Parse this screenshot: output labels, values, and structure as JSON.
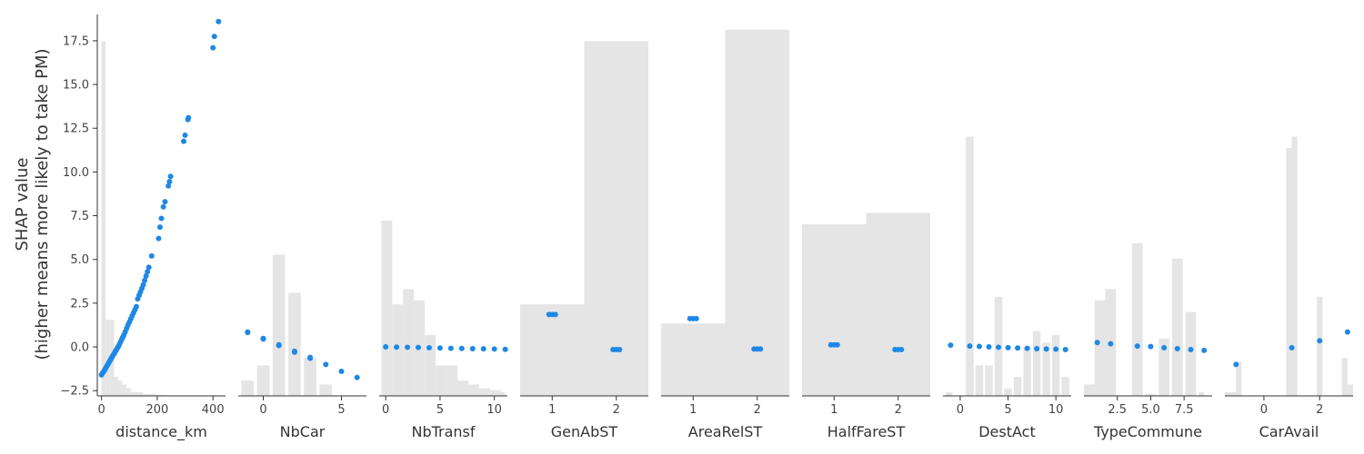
{
  "chart_data": {
    "type": "scatter",
    "ylabel": "SHAP value\n(higher means more likely to take PM)",
    "ylim": [
      -2.8,
      19.0
    ],
    "yticks": [
      -2.5,
      0.0,
      2.5,
      5.0,
      7.5,
      10.0,
      12.5,
      15.0,
      17.5
    ],
    "yticklabels": [
      "−2.5",
      "0.0",
      "2.5",
      "5.0",
      "7.5",
      "10.0",
      "12.5",
      "15.0",
      "17.5"
    ],
    "point_color": "#1e88e5",
    "histogram_color": "#e5e5e5",
    "axis_color": "#333333",
    "panels": [
      {
        "feature": "distance_km",
        "xlim": [
          -15,
          445
        ],
        "xticks": [
          0,
          200,
          400
        ],
        "xticklabels": [
          "0",
          "200",
          "400"
        ],
        "histogram": [
          [
            0,
            15,
            0.93
          ],
          [
            15,
            30,
            0.2
          ],
          [
            30,
            45,
            0.2
          ],
          [
            45,
            60,
            0.05
          ],
          [
            60,
            75,
            0.04
          ],
          [
            75,
            90,
            0.03
          ],
          [
            90,
            105,
            0.02
          ],
          [
            105,
            120,
            0.01
          ],
          [
            120,
            135,
            0.01
          ],
          [
            135,
            150,
            0.01
          ],
          [
            150,
            165,
            0.005
          ],
          [
            165,
            180,
            0.005
          ],
          [
            180,
            195,
            0.005
          ],
          [
            195,
            210,
            0.003
          ],
          [
            210,
            225,
            0.003
          ],
          [
            225,
            240,
            0.002
          ]
        ],
        "points": [
          [
            0,
            -1.6
          ],
          [
            3,
            -1.52
          ],
          [
            6,
            -1.45
          ],
          [
            9,
            -1.38
          ],
          [
            12,
            -1.3
          ],
          [
            15,
            -1.22
          ],
          [
            18,
            -1.13
          ],
          [
            21,
            -1.05
          ],
          [
            24,
            -0.97
          ],
          [
            27,
            -0.88
          ],
          [
            30,
            -0.8
          ],
          [
            33,
            -0.72
          ],
          [
            36,
            -0.63
          ],
          [
            39,
            -0.55
          ],
          [
            42,
            -0.47
          ],
          [
            45,
            -0.39
          ],
          [
            48,
            -0.31
          ],
          [
            51,
            -0.23
          ],
          [
            54,
            -0.15
          ],
          [
            57,
            -0.07
          ],
          [
            60,
            0.01
          ],
          [
            64,
            0.13
          ],
          [
            68,
            0.27
          ],
          [
            72,
            0.41
          ],
          [
            76,
            0.54
          ],
          [
            80,
            0.67
          ],
          [
            85,
            0.86
          ],
          [
            90,
            1.05
          ],
          [
            95,
            1.25
          ],
          [
            100,
            1.42
          ],
          [
            105,
            1.6
          ],
          [
            110,
            1.78
          ],
          [
            115,
            1.95
          ],
          [
            120,
            2.12
          ],
          [
            125,
            2.3
          ],
          [
            130,
            2.75
          ],
          [
            135,
            2.95
          ],
          [
            140,
            3.15
          ],
          [
            145,
            3.35
          ],
          [
            150,
            3.55
          ],
          [
            155,
            3.8
          ],
          [
            160,
            4.05
          ],
          [
            165,
            4.3
          ],
          [
            170,
            4.55
          ],
          [
            180,
            5.2
          ],
          [
            205,
            6.2
          ],
          [
            210,
            6.85
          ],
          [
            215,
            7.35
          ],
          [
            222,
            8.0
          ],
          [
            228,
            8.3
          ],
          [
            240,
            9.2
          ],
          [
            244,
            9.45
          ],
          [
            248,
            9.75
          ],
          [
            295,
            11.75
          ],
          [
            300,
            12.1
          ],
          [
            310,
            13.0
          ],
          [
            312,
            13.1
          ],
          [
            400,
            17.1
          ],
          [
            405,
            17.75
          ],
          [
            420,
            18.6
          ]
        ]
      },
      {
        "feature": "NbCar",
        "xlim": [
          -1.6,
          6.6
        ],
        "xticks": [
          0,
          5
        ],
        "xticklabels": [
          "0",
          "5"
        ],
        "histogram": [
          [
            -1.4,
            -0.6,
            0.04
          ],
          [
            -0.4,
            0.4,
            0.08
          ],
          [
            0.6,
            1.4,
            0.37
          ],
          [
            1.6,
            2.4,
            0.27
          ],
          [
            2.6,
            3.4,
            0.1
          ],
          [
            3.6,
            4.4,
            0.03
          ]
        ],
        "points": [
          [
            -1,
            0.85
          ],
          [
            -1,
            0.82
          ],
          [
            0,
            0.48
          ],
          [
            0,
            0.45
          ],
          [
            1,
            0.12
          ],
          [
            1,
            0.08
          ],
          [
            2,
            -0.25
          ],
          [
            2,
            -0.3
          ],
          [
            3,
            -0.6
          ],
          [
            3,
            -0.65
          ],
          [
            4,
            -1.0
          ],
          [
            5,
            -1.4
          ],
          [
            6,
            -1.75
          ]
        ]
      },
      {
        "feature": "NbTransf",
        "xlim": [
          -0.6,
          11.2
        ],
        "xticks": [
          0,
          5,
          10
        ],
        "xticklabels": [
          "0",
          "5",
          "10"
        ],
        "histogram": [
          [
            -0.4,
            0.6,
            0.46
          ],
          [
            0.6,
            1.6,
            0.24
          ],
          [
            1.6,
            2.6,
            0.28
          ],
          [
            2.6,
            3.6,
            0.25
          ],
          [
            3.6,
            4.6,
            0.16
          ],
          [
            4.6,
            5.6,
            0.08
          ],
          [
            5.6,
            6.6,
            0.08
          ],
          [
            6.6,
            7.6,
            0.04
          ],
          [
            7.6,
            8.6,
            0.03
          ],
          [
            8.6,
            9.6,
            0.02
          ],
          [
            9.6,
            10.6,
            0.015
          ],
          [
            10.6,
            11.0,
            0.01
          ]
        ],
        "points": [
          [
            0,
            0.0
          ],
          [
            1,
            -0.01
          ],
          [
            2,
            -0.02
          ],
          [
            3,
            -0.03
          ],
          [
            4,
            -0.05
          ],
          [
            5,
            -0.06
          ],
          [
            6,
            -0.08
          ],
          [
            7,
            -0.09
          ],
          [
            8,
            -0.1
          ],
          [
            9,
            -0.11
          ],
          [
            10,
            -0.12
          ],
          [
            11,
            -0.14
          ]
        ]
      },
      {
        "feature": "GenAbST",
        "xlim": [
          0.5,
          2.5
        ],
        "xticks": [
          1,
          2
        ],
        "xticklabels": [
          "1",
          "2"
        ],
        "histogram": [
          [
            0.5,
            1.5,
            0.24
          ],
          [
            1.5,
            2.5,
            0.93
          ]
        ],
        "points": [
          [
            0.95,
            1.85
          ],
          [
            1.0,
            1.85
          ],
          [
            1.05,
            1.85
          ],
          [
            1.95,
            -0.15
          ],
          [
            2.0,
            -0.15
          ],
          [
            2.05,
            -0.15
          ]
        ]
      },
      {
        "feature": "AreaRelST",
        "xlim": [
          0.5,
          2.5
        ],
        "xticks": [
          1,
          2
        ],
        "xticklabels": [
          "1",
          "2"
        ],
        "histogram": [
          [
            0.5,
            1.5,
            0.19
          ],
          [
            1.5,
            2.5,
            0.96
          ]
        ],
        "points": [
          [
            0.95,
            1.62
          ],
          [
            1.0,
            1.62
          ],
          [
            1.05,
            1.62
          ],
          [
            1.95,
            -0.12
          ],
          [
            2.0,
            -0.12
          ],
          [
            2.05,
            -0.12
          ]
        ]
      },
      {
        "feature": "HalfFareST",
        "xlim": [
          0.5,
          2.5
        ],
        "xticks": [
          1,
          2
        ],
        "xticklabels": [
          "1",
          "2"
        ],
        "histogram": [
          [
            0.5,
            1.5,
            0.45
          ],
          [
            1.5,
            2.5,
            0.48
          ]
        ],
        "points": [
          [
            0.95,
            0.12
          ],
          [
            1.0,
            0.12
          ],
          [
            1.05,
            0.12
          ],
          [
            1.95,
            -0.15
          ],
          [
            2.0,
            -0.15
          ],
          [
            2.05,
            -0.15
          ]
        ]
      },
      {
        "feature": "DestAct",
        "xlim": [
          -1.8,
          11.6
        ],
        "xticks": [
          0,
          5,
          10
        ],
        "xticklabels": [
          "0",
          "5",
          "10"
        ],
        "histogram": [
          [
            -1.5,
            -0.8,
            0.01
          ],
          [
            0.6,
            1.4,
            0.68
          ],
          [
            1.6,
            2.4,
            0.08
          ],
          [
            2.6,
            3.4,
            0.08
          ],
          [
            3.6,
            4.4,
            0.26
          ],
          [
            4.6,
            5.4,
            0.02
          ],
          [
            5.6,
            6.4,
            0.05
          ],
          [
            6.6,
            7.4,
            0.13
          ],
          [
            7.6,
            8.4,
            0.17
          ],
          [
            8.6,
            9.4,
            0.14
          ],
          [
            9.6,
            10.4,
            0.16
          ],
          [
            10.6,
            11.4,
            0.05
          ]
        ],
        "points": [
          [
            -1,
            0.1
          ],
          [
            1,
            0.05
          ],
          [
            2,
            0.03
          ],
          [
            3,
            0.0
          ],
          [
            4,
            -0.02
          ],
          [
            5,
            -0.04
          ],
          [
            6,
            -0.06
          ],
          [
            7,
            -0.08
          ],
          [
            8,
            -0.1
          ],
          [
            9,
            -0.12
          ],
          [
            10,
            -0.13
          ],
          [
            11,
            -0.15
          ]
        ]
      },
      {
        "feature": "TypeCommune",
        "xlim": [
          0.0,
          9.6
        ],
        "xticks": [
          2.5,
          5.0,
          7.5
        ],
        "xticklabels": [
          "2.5",
          "5.0",
          "7.5"
        ],
        "histogram": [
          [
            0.0,
            0.8,
            0.03
          ],
          [
            0.8,
            1.6,
            0.25
          ],
          [
            1.6,
            2.4,
            0.28
          ],
          [
            3.6,
            4.4,
            0.4
          ],
          [
            4.6,
            5.4,
            0.005
          ],
          [
            5.6,
            6.4,
            0.15
          ],
          [
            6.6,
            7.4,
            0.36
          ],
          [
            7.6,
            8.4,
            0.22
          ],
          [
            8.6,
            9.0,
            0.01
          ]
        ],
        "points": [
          [
            1,
            0.25
          ],
          [
            2,
            0.18
          ],
          [
            4,
            0.05
          ],
          [
            5,
            0.02
          ],
          [
            6,
            -0.05
          ],
          [
            7,
            -0.1
          ],
          [
            8,
            -0.15
          ],
          [
            9,
            -0.2
          ]
        ]
      },
      {
        "feature": "CarAvail",
        "xlim": [
          -1.4,
          3.2
        ],
        "xticks": [
          0,
          2
        ],
        "xticklabels": [
          "0",
          "2"
        ],
        "histogram": [
          [
            -1.4,
            -0.9,
            0.01
          ],
          [
            -1.0,
            -0.8,
            0.09
          ],
          [
            0.8,
            1.0,
            0.65
          ],
          [
            1.0,
            1.2,
            0.68
          ],
          [
            1.9,
            2.1,
            0.26
          ],
          [
            2.8,
            3.0,
            0.1
          ],
          [
            3.0,
            3.2,
            0.03
          ]
        ],
        "points": [
          [
            -1,
            -1.0
          ],
          [
            1,
            -0.05
          ],
          [
            2,
            0.35
          ],
          [
            3,
            0.85
          ]
        ]
      }
    ]
  }
}
